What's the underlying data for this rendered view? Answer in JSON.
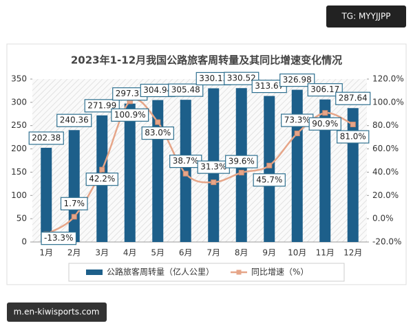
{
  "overlay": {
    "top_right": "TG: MYYJJPP",
    "bottom_left": "m.en-kiwisports.com"
  },
  "chart_data": {
    "type": "bar",
    "title": "2023年1-12月我国公路旅客周转量及其同比增速变化情况",
    "categories": [
      "1月",
      "2月",
      "3月",
      "4月",
      "5月",
      "6月",
      "7月",
      "8月",
      "9月",
      "10月",
      "11月",
      "12月"
    ],
    "series": [
      {
        "name": "公路旅客周转量（亿人公里）",
        "type": "bar",
        "color": "#1d5f8a",
        "values": [
          202.38,
          240.36,
          271.99,
          297.31,
          304.94,
          305.48,
          330.13,
          330.52,
          313.67,
          326.98,
          306.17,
          287.64
        ]
      },
      {
        "name": "同比增速（%）",
        "type": "line",
        "axis": "y2",
        "color": "#e6a588",
        "values": [
          -13.3,
          1.7,
          42.2,
          100.9,
          83.0,
          38.7,
          31.3,
          39.6,
          45.7,
          73.3,
          90.9,
          81.0
        ],
        "value_labels": [
          "-13.3%",
          "1.7%",
          "42.2%",
          "100.9%",
          "83.0%",
          "38.7%",
          "31.3%",
          "39.6%",
          "45.7%",
          "73.3%",
          "90.9%",
          "81.0%"
        ]
      }
    ],
    "ylim": [
      0,
      350
    ],
    "yticks": [
      0,
      50,
      100,
      150,
      200,
      250,
      300,
      350
    ],
    "y2lim": [
      -20,
      120
    ],
    "y2ticks": [
      {
        "value": -20,
        "label": "-20.0%"
      },
      {
        "value": 0,
        "label": "0.0%"
      },
      {
        "value": 20,
        "label": "20.0%"
      },
      {
        "value": 40,
        "label": "40.0%"
      },
      {
        "value": 60,
        "label": "60.0%"
      },
      {
        "value": 80,
        "label": "80.0%"
      },
      {
        "value": 100,
        "label": "100.0%"
      },
      {
        "value": 120,
        "label": "120.0%"
      }
    ],
    "grid": false,
    "legend": "bottom"
  }
}
